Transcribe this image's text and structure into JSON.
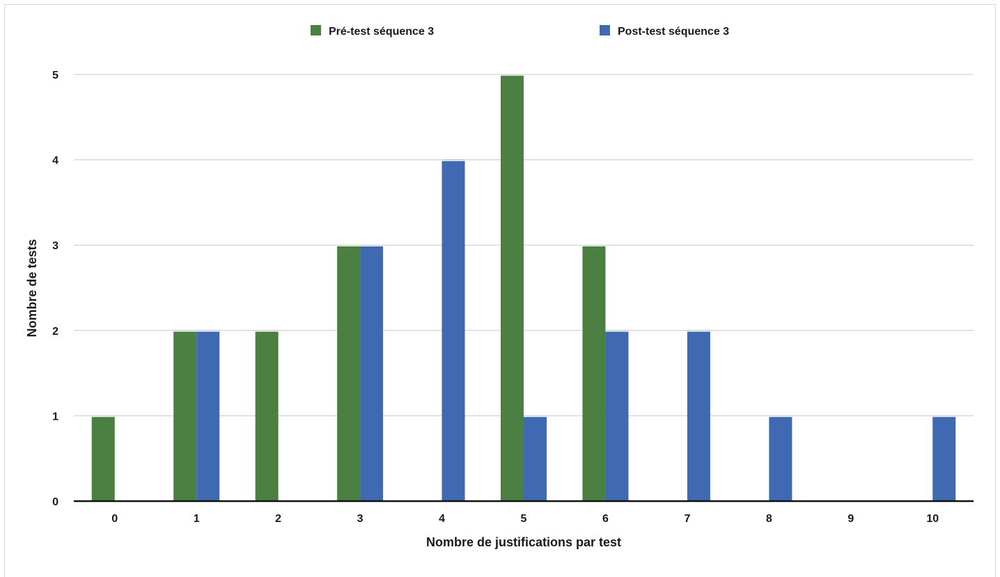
{
  "chart_data": {
    "type": "bar",
    "xlabel": "Nombre de justifications par test",
    "ylabel": "Nombre de tests",
    "categories": [
      "0",
      "1",
      "2",
      "3",
      "4",
      "5",
      "6",
      "7",
      "8",
      "9",
      "10"
    ],
    "series": [
      {
        "name": "Pré-test séquence 3",
        "color": "#4c7f42",
        "values": [
          1,
          2,
          2,
          3,
          0,
          5,
          3,
          0,
          0,
          0,
          0
        ]
      },
      {
        "name": "Post-test séquence 3",
        "color": "#3f69b0",
        "values": [
          0,
          2,
          0,
          3,
          4,
          1,
          2,
          2,
          1,
          0,
          1
        ]
      }
    ],
    "ylim": [
      0,
      5
    ],
    "yticks": [
      "0",
      "1",
      "2",
      "3",
      "4",
      "5"
    ],
    "grid": true,
    "legend_position": "top-center"
  }
}
